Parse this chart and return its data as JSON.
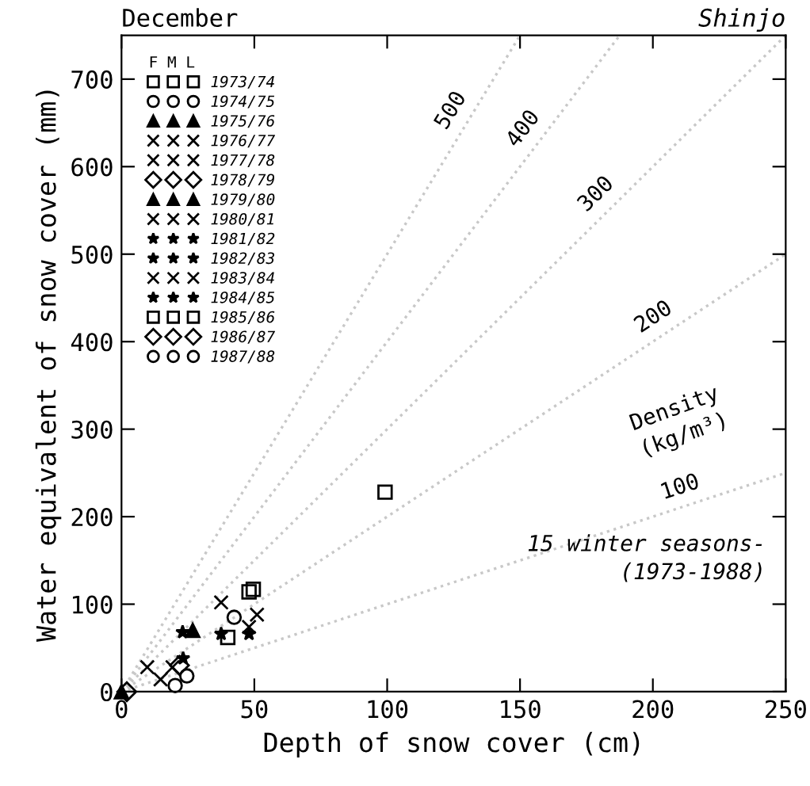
{
  "chart_data": {
    "type": "scatter",
    "title": "December",
    "subtitle": "Shinjo",
    "xlabel": "Depth of snow cover (cm)",
    "ylabel": "Water equivalent of snow cover (mm)",
    "xlim": [
      0,
      250
    ],
    "ylim": [
      0,
      750
    ],
    "xticks": [
      0,
      50,
      100,
      150,
      200,
      250
    ],
    "yticks": [
      0,
      100,
      200,
      300,
      400,
      500,
      600,
      700
    ],
    "legend": "top left",
    "legend_title": "F M L",
    "grid": false,
    "series": [
      {
        "name": "1973/74",
        "marker": "square",
        "color": "#000000",
        "x": [
          49.6,
          99.2
        ],
        "values": [
          117,
          228
        ]
      },
      {
        "name": "1974/75",
        "marker": "circle",
        "color": "#000000",
        "x": [
          24.6,
          42.4
        ],
        "values": [
          18,
          85
        ]
      },
      {
        "name": "1975/76",
        "marker": "triangle",
        "color": "#000000",
        "x": [
          26.8
        ],
        "values": [
          70
        ]
      },
      {
        "name": "1976/77",
        "marker": "cross",
        "color": "#000000",
        "x": [
          19.2
        ],
        "values": [
          28
        ]
      },
      {
        "name": "1977/78",
        "marker": "cross",
        "color": "#000000",
        "x": [
          14.7,
          51
        ],
        "values": [
          14,
          88
        ]
      },
      {
        "name": "1978/79",
        "marker": "diamond",
        "color": "#000000",
        "x": [
          21.8
        ],
        "values": [
          30
        ]
      },
      {
        "name": "1979/80",
        "marker": "triangle",
        "color": "#000000",
        "x": [
          0
        ],
        "values": [
          0
        ]
      },
      {
        "name": "1980/81",
        "marker": "cross",
        "color": "#000000",
        "x": [
          9.7,
          37.5
        ],
        "values": [
          28,
          102
        ]
      },
      {
        "name": "1981/82",
        "marker": "star",
        "color": "#000000",
        "x": [
          23,
          37.5
        ],
        "values": [
          68,
          66
        ]
      },
      {
        "name": "1982/83",
        "marker": "star",
        "color": "#000000",
        "x": [
          23.2
        ],
        "values": [
          38
        ]
      },
      {
        "name": "1983/84",
        "marker": "cross",
        "color": "#000000",
        "x": [
          48
        ],
        "values": [
          74
        ]
      },
      {
        "name": "1984/85",
        "marker": "star",
        "color": "#000000",
        "x": [
          48
        ],
        "values": [
          66
        ]
      },
      {
        "name": "1985/86",
        "marker": "square",
        "color": "#000000",
        "x": [
          40,
          48
        ],
        "values": [
          62,
          114
        ]
      },
      {
        "name": "1986/87",
        "marker": "diamond",
        "color": "#000000",
        "x": [
          2
        ],
        "values": [
          0
        ]
      },
      {
        "name": "1987/88",
        "marker": "circle",
        "color": "#000000",
        "x": [
          20.2
        ],
        "values": [
          7
        ]
      },
      {
        "type": "line",
        "line_style": "dotted",
        "color": "#c8c8c8",
        "marker": "none",
        "x": [
          0,
          250
        ],
        "values": [
          0,
          250
        ]
      },
      {
        "type": "line",
        "line_style": "dotted",
        "color": "#c8c8c8",
        "marker": "none",
        "x": [
          0,
          250
        ],
        "values": [
          0,
          500
        ]
      },
      {
        "type": "line",
        "line_style": "dotted",
        "color": "#c8c8c8",
        "marker": "none",
        "x": [
          0,
          250
        ],
        "values": [
          0,
          750
        ]
      },
      {
        "type": "line",
        "line_style": "dotted",
        "color": "#c8c8c8",
        "marker": "none",
        "x": [
          0,
          187.5
        ],
        "values": [
          0,
          750
        ]
      },
      {
        "type": "line",
        "line_style": "dotted",
        "color": "#c8c8c8",
        "marker": "none",
        "x": [
          0,
          150
        ],
        "values": [
          0,
          750
        ]
      }
    ],
    "annotations": [
      {
        "text": "100",
        "x": 214,
        "y": 214
      },
      {
        "text": "200",
        "x": 205,
        "y": 410
      },
      {
        "text": "300",
        "x": 184,
        "y": 552
      },
      {
        "text": "400",
        "x": 157,
        "y": 628
      },
      {
        "text": "500",
        "x": 130,
        "y": 650
      },
      "Density\n(kg/m³)",
      "15 winter seasons-\n(1973-1988)"
    ]
  }
}
